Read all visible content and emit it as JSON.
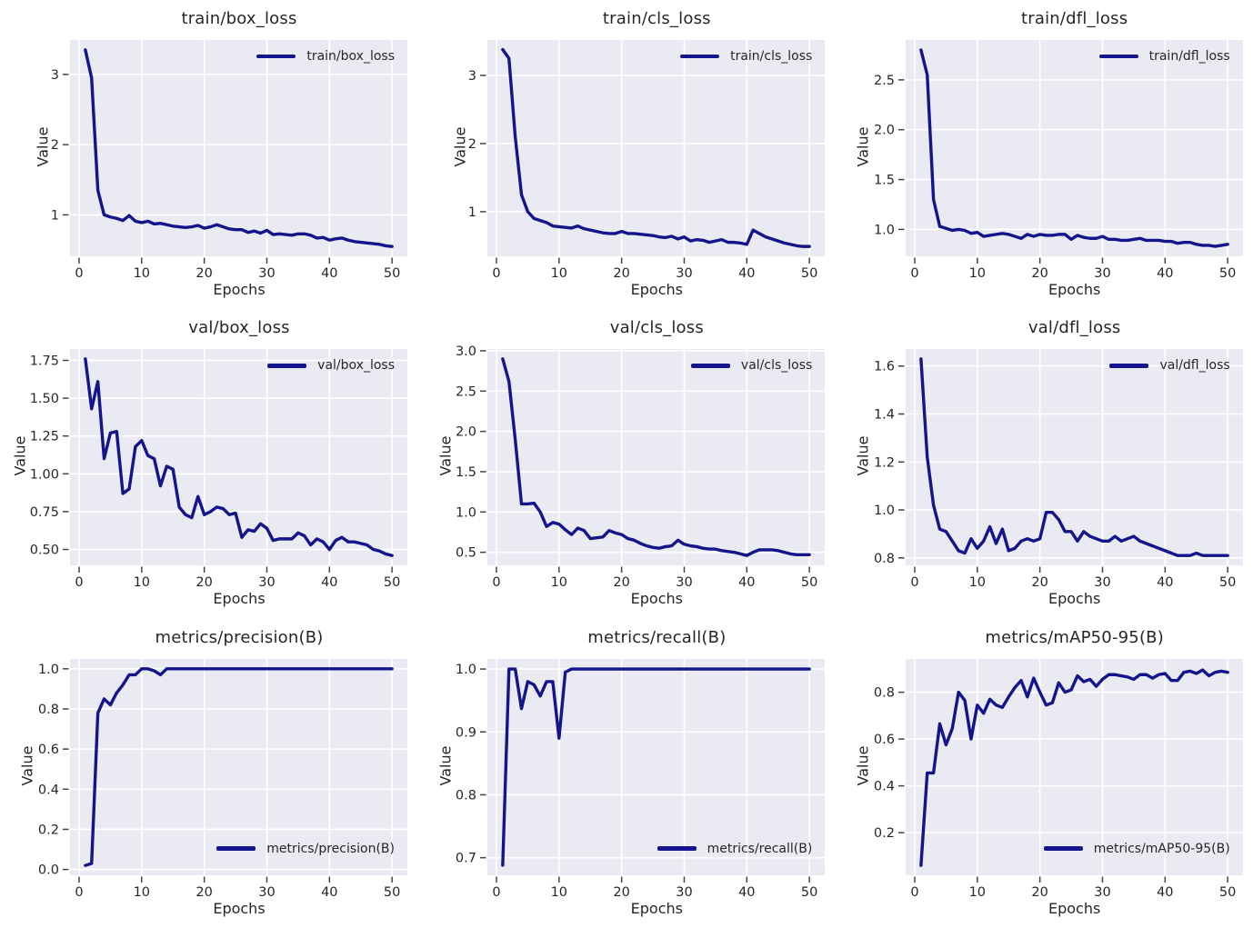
{
  "figure": {
    "description": "Training results dashboard, 3x3 grid of metric curves over epochs",
    "background": "#ffffff"
  },
  "style": {
    "line_color": "#14148C",
    "plot_bg": "#EAEAF2",
    "grid_color": "#ffffff",
    "text_color": "#262626",
    "tick_color": "#444444"
  },
  "chart_data": [
    {
      "type": "line",
      "title": "train/box_loss",
      "legend": "train/box_loss",
      "legend_pos": "upper-right",
      "xlabel": "Epochs",
      "ylabel": "Value",
      "grid": true,
      "x_start": 1,
      "xlim": [
        -1.45,
        52.45
      ],
      "ylim": [
        0.41,
        3.49
      ],
      "xticks": [
        0,
        10,
        20,
        30,
        40,
        50
      ],
      "yticks": [
        1,
        2,
        3
      ],
      "ytick_labels": [
        "1",
        "2",
        "3"
      ],
      "values": [
        3.35,
        2.95,
        1.35,
        1.0,
        0.97,
        0.95,
        0.92,
        0.99,
        0.91,
        0.89,
        0.91,
        0.87,
        0.88,
        0.86,
        0.84,
        0.83,
        0.82,
        0.83,
        0.85,
        0.81,
        0.83,
        0.86,
        0.83,
        0.8,
        0.79,
        0.79,
        0.75,
        0.77,
        0.74,
        0.78,
        0.72,
        0.73,
        0.72,
        0.71,
        0.73,
        0.73,
        0.71,
        0.67,
        0.68,
        0.64,
        0.66,
        0.67,
        0.64,
        0.62,
        0.61,
        0.6,
        0.59,
        0.58,
        0.56,
        0.55
      ]
    },
    {
      "type": "line",
      "title": "train/cls_loss",
      "legend": "train/cls_loss",
      "legend_pos": "upper-right",
      "xlabel": "Epochs",
      "ylabel": "Value",
      "grid": true,
      "x_start": 1,
      "xlim": [
        -1.45,
        52.45
      ],
      "ylim": [
        0.345,
        3.52
      ],
      "xticks": [
        0,
        10,
        20,
        30,
        40,
        50
      ],
      "yticks": [
        1,
        2,
        3
      ],
      "ytick_labels": [
        "1",
        "2",
        "3"
      ],
      "values": [
        3.38,
        3.25,
        2.1,
        1.25,
        1.0,
        0.9,
        0.87,
        0.84,
        0.79,
        0.78,
        0.77,
        0.76,
        0.79,
        0.75,
        0.73,
        0.71,
        0.69,
        0.68,
        0.68,
        0.71,
        0.68,
        0.68,
        0.67,
        0.66,
        0.65,
        0.63,
        0.62,
        0.64,
        0.6,
        0.63,
        0.57,
        0.59,
        0.58,
        0.55,
        0.57,
        0.59,
        0.55,
        0.55,
        0.54,
        0.52,
        0.73,
        0.68,
        0.63,
        0.6,
        0.57,
        0.54,
        0.52,
        0.5,
        0.49,
        0.49
      ]
    },
    {
      "type": "line",
      "title": "train/dfl_loss",
      "legend": "train/dfl_loss",
      "legend_pos": "upper-right",
      "xlabel": "Epochs",
      "ylabel": "Value",
      "grid": true,
      "x_start": 1,
      "xlim": [
        -1.45,
        52.45
      ],
      "ylim": [
        0.73,
        2.9
      ],
      "xticks": [
        0,
        10,
        20,
        30,
        40,
        50
      ],
      "yticks": [
        1.0,
        1.5,
        2.0,
        2.5
      ],
      "ytick_labels": [
        "1.0",
        "1.5",
        "2.0",
        "2.5"
      ],
      "values": [
        2.8,
        2.55,
        1.3,
        1.03,
        1.01,
        0.99,
        1.0,
        0.99,
        0.96,
        0.97,
        0.93,
        0.94,
        0.95,
        0.96,
        0.95,
        0.93,
        0.91,
        0.95,
        0.93,
        0.95,
        0.94,
        0.94,
        0.95,
        0.95,
        0.9,
        0.94,
        0.92,
        0.91,
        0.91,
        0.93,
        0.9,
        0.9,
        0.89,
        0.89,
        0.9,
        0.91,
        0.89,
        0.89,
        0.89,
        0.88,
        0.88,
        0.86,
        0.87,
        0.87,
        0.85,
        0.84,
        0.84,
        0.83,
        0.84,
        0.85
      ]
    },
    {
      "type": "line",
      "title": "val/box_loss",
      "legend": "val/box_loss",
      "legend_pos": "upper-right",
      "xlabel": "Epochs",
      "ylabel": "Value",
      "grid": true,
      "x_start": 1,
      "xlim": [
        -1.45,
        52.45
      ],
      "ylim": [
        0.395,
        1.825
      ],
      "xticks": [
        0,
        10,
        20,
        30,
        40,
        50
      ],
      "yticks": [
        0.5,
        0.75,
        1.0,
        1.25,
        1.5,
        1.75
      ],
      "ytick_labels": [
        "0.50",
        "0.75",
        "1.00",
        "1.25",
        "1.50",
        "1.75"
      ],
      "values": [
        1.76,
        1.43,
        1.61,
        1.1,
        1.27,
        1.28,
        0.87,
        0.9,
        1.18,
        1.22,
        1.12,
        1.1,
        0.92,
        1.05,
        1.03,
        0.78,
        0.73,
        0.71,
        0.85,
        0.73,
        0.75,
        0.78,
        0.77,
        0.73,
        0.74,
        0.58,
        0.63,
        0.62,
        0.67,
        0.64,
        0.56,
        0.57,
        0.57,
        0.57,
        0.61,
        0.59,
        0.53,
        0.57,
        0.55,
        0.5,
        0.56,
        0.58,
        0.55,
        0.55,
        0.54,
        0.53,
        0.5,
        0.49,
        0.47,
        0.46
      ]
    },
    {
      "type": "line",
      "title": "val/cls_loss",
      "legend": "val/cls_loss",
      "legend_pos": "upper-right",
      "xlabel": "Epochs",
      "ylabel": "Value",
      "grid": true,
      "x_start": 1,
      "xlim": [
        -1.45,
        52.45
      ],
      "ylim": [
        0.338,
        3.022
      ],
      "xticks": [
        0,
        10,
        20,
        30,
        40,
        50
      ],
      "yticks": [
        0.5,
        1.0,
        1.5,
        2.0,
        2.5,
        3.0
      ],
      "ytick_labels": [
        "0.5",
        "1.0",
        "1.5",
        "2.0",
        "2.5",
        "3.0"
      ],
      "values": [
        2.9,
        2.62,
        1.9,
        1.1,
        1.1,
        1.11,
        1.0,
        0.82,
        0.87,
        0.85,
        0.78,
        0.72,
        0.8,
        0.77,
        0.67,
        0.68,
        0.69,
        0.77,
        0.74,
        0.72,
        0.67,
        0.65,
        0.61,
        0.58,
        0.56,
        0.55,
        0.57,
        0.58,
        0.65,
        0.6,
        0.58,
        0.57,
        0.55,
        0.54,
        0.54,
        0.52,
        0.51,
        0.5,
        0.48,
        0.46,
        0.5,
        0.53,
        0.53,
        0.53,
        0.52,
        0.5,
        0.48,
        0.47,
        0.47,
        0.47
      ]
    },
    {
      "type": "line",
      "title": "val/dfl_loss",
      "legend": "val/dfl_loss",
      "legend_pos": "upper-right",
      "xlabel": "Epochs",
      "ylabel": "Value",
      "grid": true,
      "x_start": 1,
      "xlim": [
        -1.45,
        52.45
      ],
      "ylim": [
        0.769,
        1.671
      ],
      "xticks": [
        0,
        10,
        20,
        30,
        40,
        50
      ],
      "yticks": [
        0.8,
        1.0,
        1.2,
        1.4,
        1.6
      ],
      "ytick_labels": [
        "0.8",
        "1.0",
        "1.2",
        "1.4",
        "1.6"
      ],
      "values": [
        1.63,
        1.22,
        1.02,
        0.92,
        0.91,
        0.87,
        0.83,
        0.82,
        0.88,
        0.84,
        0.87,
        0.93,
        0.86,
        0.92,
        0.83,
        0.84,
        0.87,
        0.88,
        0.87,
        0.88,
        0.99,
        0.99,
        0.96,
        0.91,
        0.91,
        0.87,
        0.91,
        0.89,
        0.88,
        0.87,
        0.87,
        0.89,
        0.87,
        0.88,
        0.89,
        0.87,
        0.86,
        0.85,
        0.84,
        0.83,
        0.82,
        0.81,
        0.81,
        0.81,
        0.82,
        0.81,
        0.81,
        0.81,
        0.81,
        0.81
      ]
    },
    {
      "type": "line",
      "title": "metrics/precision(B)",
      "legend": "metrics/precision(B)",
      "legend_pos": "lower-right",
      "xlabel": "Epochs",
      "ylabel": "Value",
      "grid": true,
      "x_start": 1,
      "xlim": [
        -1.45,
        52.45
      ],
      "ylim": [
        -0.029,
        1.049
      ],
      "xticks": [
        0,
        10,
        20,
        30,
        40,
        50
      ],
      "yticks": [
        0.0,
        0.2,
        0.4,
        0.6,
        0.8,
        1.0
      ],
      "ytick_labels": [
        "0.0",
        "0.2",
        "0.4",
        "0.6",
        "0.8",
        "1.0"
      ],
      "values": [
        0.02,
        0.03,
        0.78,
        0.85,
        0.82,
        0.88,
        0.92,
        0.97,
        0.97,
        1.0,
        1.0,
        0.99,
        0.97,
        1.0,
        1.0,
        1.0,
        1.0,
        1.0,
        1.0,
        1.0,
        1.0,
        1.0,
        1.0,
        1.0,
        1.0,
        1.0,
        1.0,
        1.0,
        1.0,
        1.0,
        1.0,
        1.0,
        1.0,
        1.0,
        1.0,
        1.0,
        1.0,
        1.0,
        1.0,
        1.0,
        1.0,
        1.0,
        1.0,
        1.0,
        1.0,
        1.0,
        1.0,
        1.0,
        1.0,
        1.0
      ]
    },
    {
      "type": "line",
      "title": "metrics/recall(B)",
      "legend": "metrics/recall(B)",
      "legend_pos": "lower-right",
      "xlabel": "Epochs",
      "ylabel": "Value",
      "grid": true,
      "x_start": 1,
      "xlim": [
        -1.45,
        52.45
      ],
      "ylim": [
        0.672,
        1.016
      ],
      "xticks": [
        0,
        10,
        20,
        30,
        40,
        50
      ],
      "yticks": [
        0.7,
        0.8,
        0.9,
        1.0
      ],
      "ytick_labels": [
        "0.7",
        "0.8",
        "0.9",
        "1.0"
      ],
      "values": [
        0.688,
        1.0,
        1.0,
        0.937,
        0.98,
        0.975,
        0.957,
        0.98,
        0.98,
        0.89,
        0.995,
        1.0,
        1.0,
        1.0,
        1.0,
        1.0,
        1.0,
        1.0,
        1.0,
        1.0,
        1.0,
        1.0,
        1.0,
        1.0,
        1.0,
        1.0,
        1.0,
        1.0,
        1.0,
        1.0,
        1.0,
        1.0,
        1.0,
        1.0,
        1.0,
        1.0,
        1.0,
        1.0,
        1.0,
        1.0,
        1.0,
        1.0,
        1.0,
        1.0,
        1.0,
        1.0,
        1.0,
        1.0,
        1.0,
        1.0
      ]
    },
    {
      "type": "line",
      "title": "metrics/mAP50-95(B)",
      "legend": "metrics/mAP50-95(B)",
      "legend_pos": "lower-right",
      "xlabel": "Epochs",
      "ylabel": "Value",
      "grid": true,
      "x_start": 1,
      "xlim": [
        -1.45,
        52.45
      ],
      "ylim": [
        0.018,
        0.942
      ],
      "xticks": [
        0,
        10,
        20,
        30,
        40,
        50
      ],
      "yticks": [
        0.2,
        0.4,
        0.6,
        0.8
      ],
      "ytick_labels": [
        "0.2",
        "0.4",
        "0.6",
        "0.8"
      ],
      "values": [
        0.06,
        0.455,
        0.455,
        0.665,
        0.575,
        0.645,
        0.8,
        0.765,
        0.6,
        0.745,
        0.71,
        0.77,
        0.745,
        0.735,
        0.78,
        0.82,
        0.85,
        0.78,
        0.86,
        0.8,
        0.745,
        0.755,
        0.84,
        0.8,
        0.81,
        0.87,
        0.845,
        0.855,
        0.825,
        0.855,
        0.875,
        0.875,
        0.87,
        0.865,
        0.855,
        0.875,
        0.875,
        0.86,
        0.875,
        0.88,
        0.85,
        0.85,
        0.885,
        0.89,
        0.88,
        0.895,
        0.87,
        0.885,
        0.89,
        0.885
      ]
    }
  ]
}
